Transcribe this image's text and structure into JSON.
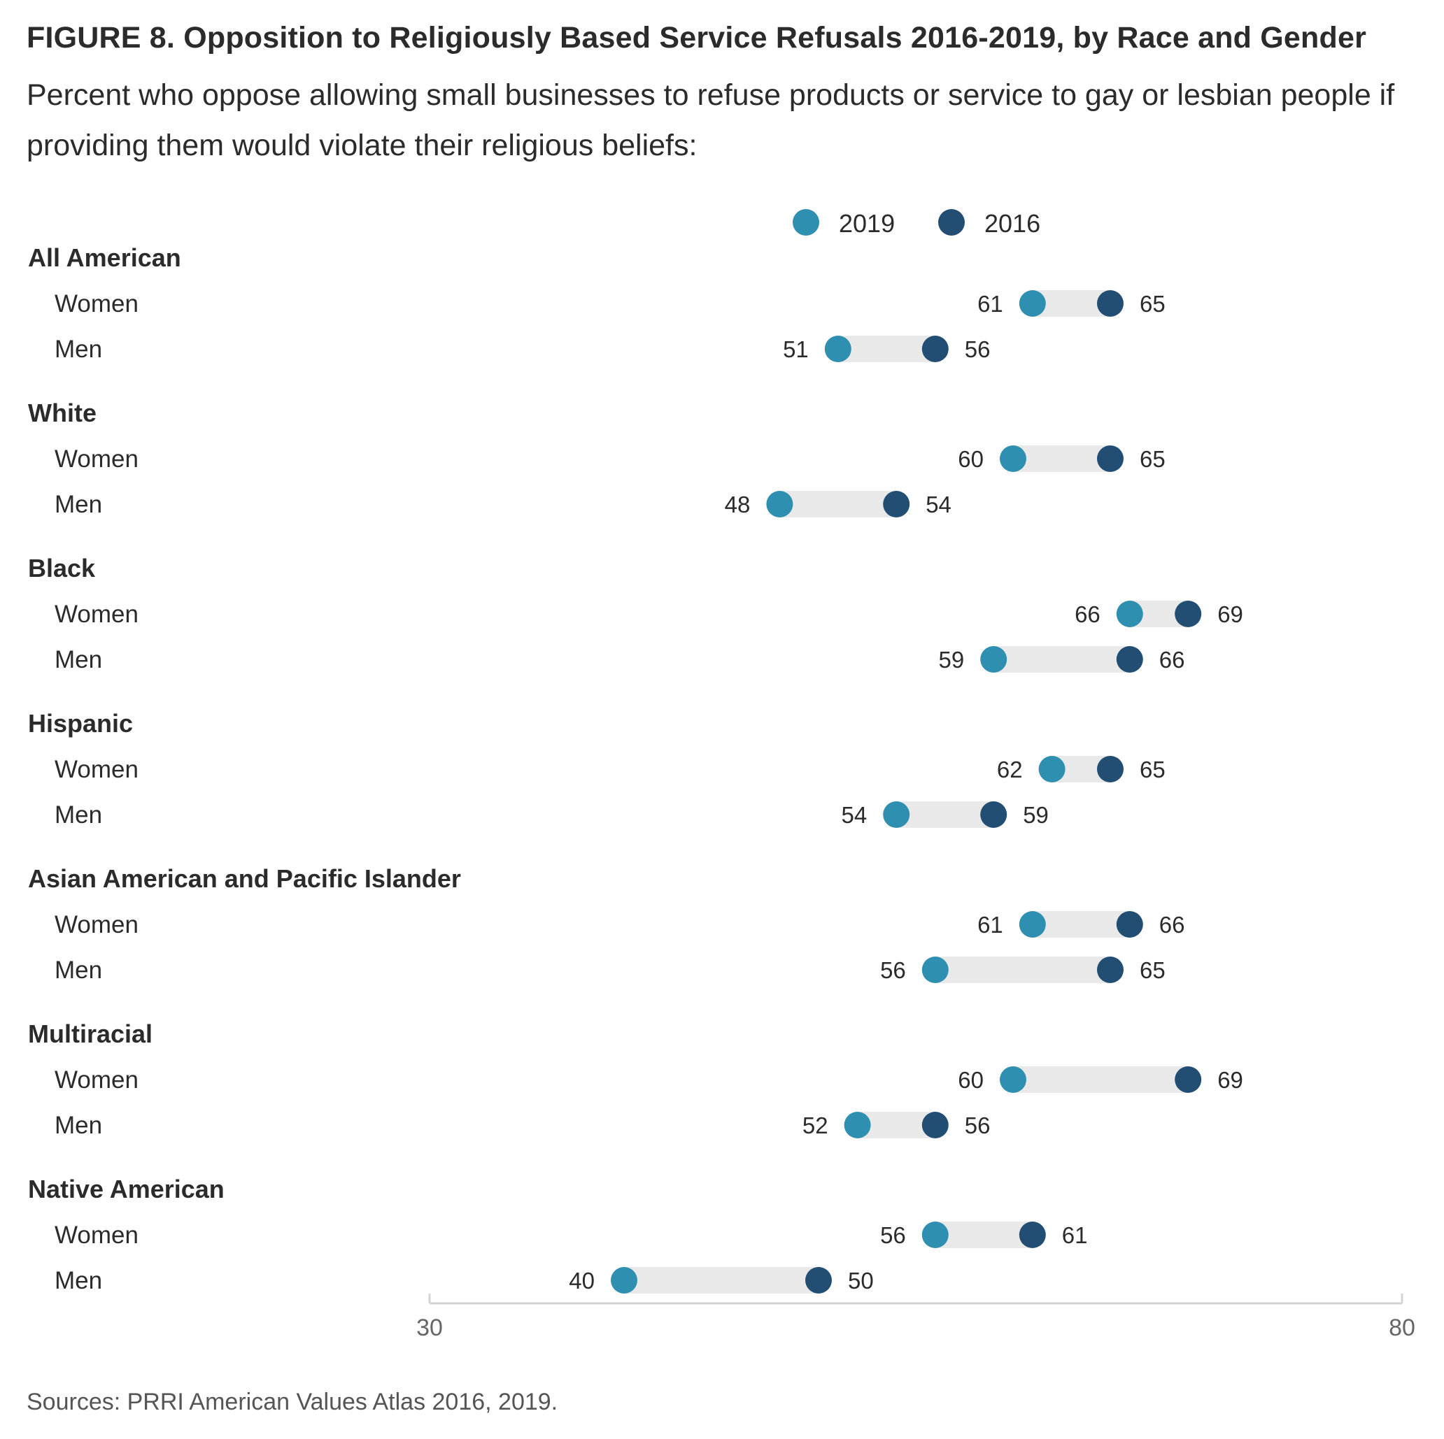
{
  "title": "FIGURE 8. Opposition to Religiously Based Service Refusals 2016-2019, by Race and Gender",
  "subtitle": "Percent who oppose allowing small businesses to refuse products or service to gay or lesbian people if providing them would violate their religious beliefs:",
  "source": "Sources: PRRI American Values Atlas 2016, 2019.",
  "colors": {
    "y2019": "#2e8fb0",
    "y2016": "#224e73",
    "bar": "#e8e9e8",
    "axis": "#d4d4d4",
    "tick_text": "#666666"
  },
  "chart_data": {
    "type": "dumbbell",
    "xlim": [
      30,
      80
    ],
    "x_ticks": [
      30,
      80
    ],
    "legend": {
      "placement": "top",
      "entries": [
        "2019",
        "2016"
      ]
    },
    "series": [
      {
        "name": "2019",
        "color": "#2e8fb0"
      },
      {
        "name": "2016",
        "color": "#224e73"
      }
    ],
    "groups": [
      {
        "label": "All American",
        "rows": [
          {
            "label": "Women",
            "v2019": 61,
            "v2016": 65
          },
          {
            "label": "Men",
            "v2019": 51,
            "v2016": 56
          }
        ]
      },
      {
        "label": "White",
        "rows": [
          {
            "label": "Women",
            "v2019": 60,
            "v2016": 65
          },
          {
            "label": "Men",
            "v2019": 48,
            "v2016": 54
          }
        ]
      },
      {
        "label": "Black",
        "rows": [
          {
            "label": "Women",
            "v2019": 66,
            "v2016": 69
          },
          {
            "label": "Men",
            "v2019": 59,
            "v2016": 66
          }
        ]
      },
      {
        "label": "Hispanic",
        "rows": [
          {
            "label": "Women",
            "v2019": 62,
            "v2016": 65
          },
          {
            "label": "Men",
            "v2019": 54,
            "v2016": 59
          }
        ]
      },
      {
        "label": "Asian American and Pacific Islander",
        "rows": [
          {
            "label": "Women",
            "v2019": 61,
            "v2016": 66
          },
          {
            "label": "Men",
            "v2019": 56,
            "v2016": 65
          }
        ]
      },
      {
        "label": "Multiracial",
        "rows": [
          {
            "label": "Women",
            "v2019": 60,
            "v2016": 69
          },
          {
            "label": "Men",
            "v2019": 52,
            "v2016": 56
          }
        ]
      },
      {
        "label": "Native American",
        "rows": [
          {
            "label": "Women",
            "v2019": 56,
            "v2016": 61
          },
          {
            "label": "Men",
            "v2019": 40,
            "v2016": 50
          }
        ]
      }
    ]
  }
}
